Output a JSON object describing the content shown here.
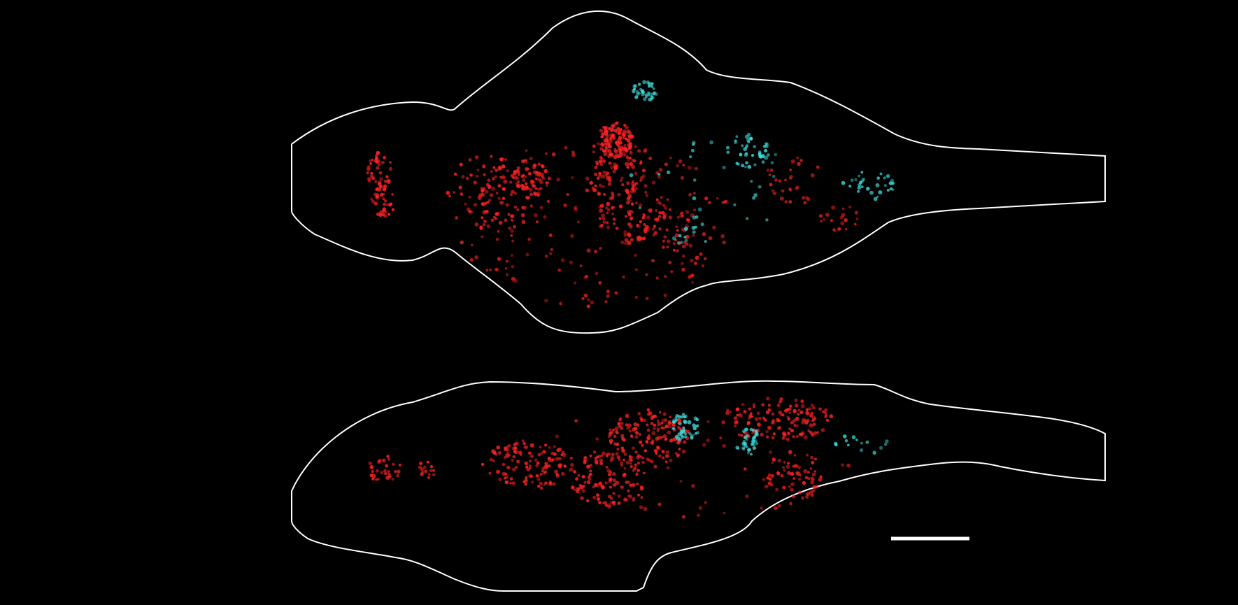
{
  "figure": {
    "background_color": "#000000",
    "outline_color": "#ffffff",
    "panels": [
      {
        "view": "dorsal",
        "clusters": [
          {
            "label_color": "#ff2222",
            "count": 40,
            "opacity": 0.9
          },
          {
            "label_color": "#ff2222",
            "count": 30,
            "opacity": 0.9
          },
          {
            "label_color": "#ff2222",
            "count": 90,
            "opacity": 0.9
          },
          {
            "label_color": "#ff2222",
            "count": 60,
            "opacity": 0.9
          },
          {
            "label_color": "#ff2222",
            "count": 110,
            "opacity": 0.9
          },
          {
            "label_color": "#ff2222",
            "count": 80,
            "opacity": 0.9
          },
          {
            "label_color": "#ff2222",
            "count": 60,
            "opacity": 0.9
          },
          {
            "label_color": "#ff2222",
            "count": 35,
            "opacity": 0.9
          },
          {
            "label_color": "#ff2222",
            "count": 220,
            "opacity": 0.75
          },
          {
            "label_color": "#ff2222",
            "count": 30,
            "opacity": 0.8
          },
          {
            "label_color": "#ff2222",
            "count": 20,
            "opacity": 0.8
          },
          {
            "label_color": "#3fe0e0",
            "count": 35,
            "opacity": 0.85
          },
          {
            "label_color": "#3fe0e0",
            "count": 40,
            "opacity": 0.85
          },
          {
            "label_color": "#3fe0e0",
            "count": 30,
            "opacity": 0.8
          },
          {
            "label_color": "#3fe0e0",
            "count": 14,
            "opacity": 0.8
          },
          {
            "label_color": "#3fe0e0",
            "count": 25,
            "opacity": 0.7
          }
        ]
      },
      {
        "view": "lateral",
        "clusters": [
          {
            "label_color": "#ff2222",
            "count": 30,
            "opacity": 0.9
          },
          {
            "label_color": "#ff2222",
            "count": 14,
            "opacity": 0.9
          },
          {
            "label_color": "#ff2222",
            "count": 120,
            "opacity": 0.9
          },
          {
            "label_color": "#ff2222",
            "count": 110,
            "opacity": 0.9
          },
          {
            "label_color": "#ff2222",
            "count": 140,
            "opacity": 0.9
          },
          {
            "label_color": "#ff2222",
            "count": 130,
            "opacity": 0.9
          },
          {
            "label_color": "#ff2222",
            "count": 60,
            "opacity": 0.9
          },
          {
            "label_color": "#ff2222",
            "count": 70,
            "opacity": 0.75
          },
          {
            "label_color": "#3fe0e0",
            "count": 45,
            "opacity": 0.85
          },
          {
            "label_color": "#3fe0e0",
            "count": 35,
            "opacity": 0.85
          },
          {
            "label_color": "#3fe0e0",
            "count": 14,
            "opacity": 0.8
          }
        ]
      }
    ],
    "scale_bar": {
      "color": "#ffffff"
    }
  }
}
